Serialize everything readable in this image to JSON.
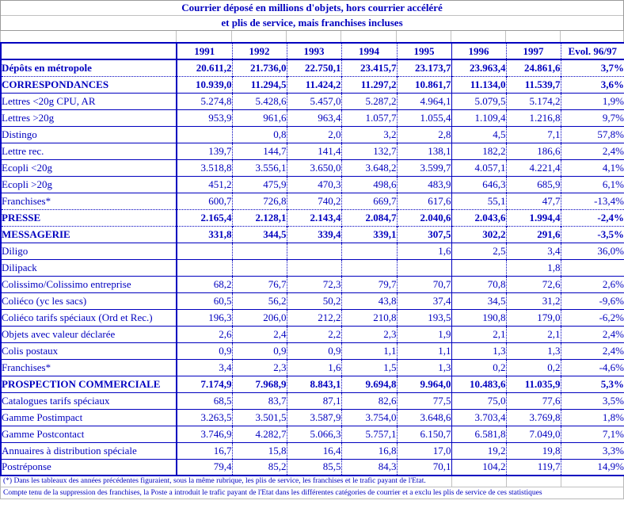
{
  "title": {
    "line1": "Courrier déposé en millions d'objets, hors courrier accéléré",
    "line2": "et plis de service, mais franchises incluses"
  },
  "table": {
    "columns": [
      "1991",
      "1992",
      "1993",
      "1994",
      "1995",
      "1996",
      "1997",
      "Evol. 96/97"
    ],
    "rows": [
      {
        "label": "Dépôts en métropole",
        "bold": true,
        "values": [
          "20.611,2",
          "21.736,0",
          "22.750,1",
          "23.415,7",
          "23.173,7",
          "23.963,4",
          "24.861,6",
          "3,7%"
        ]
      },
      {
        "label": "CORRESPONDANCES",
        "bold": true,
        "dotted_top": true,
        "values": [
          "10.939,0",
          "11.294,5",
          "11.424,2",
          "11.297,2",
          "10.861,7",
          "11.134,0",
          "11.539,7",
          "3,6%"
        ]
      },
      {
        "label": "Lettres <20g CPU, AR",
        "bold": false,
        "values": [
          "5.274,8",
          "5.428,6",
          "5.457,0",
          "5.287,2",
          "4.964,1",
          "5.079,5",
          "5.174,2",
          "1,9%"
        ]
      },
      {
        "label": "Lettres >20g",
        "bold": false,
        "values": [
          "953,9",
          "961,6",
          "963,4",
          "1.057,7",
          "1.055,4",
          "1.109,4",
          "1.216,8",
          "9,7%"
        ]
      },
      {
        "label": "Distingo",
        "bold": false,
        "values": [
          "",
          "0,8",
          "2,0",
          "3,2",
          "2,8",
          "4,5",
          "7,1",
          "57,8%"
        ]
      },
      {
        "label": "Lettre rec.",
        "bold": false,
        "values": [
          "139,7",
          "144,7",
          "141,4",
          "132,7",
          "138,1",
          "182,2",
          "186,6",
          "2,4%"
        ]
      },
      {
        "label": "Ecopli <20g",
        "bold": false,
        "values": [
          "3.518,8",
          "3.556,1",
          "3.650,0",
          "3.648,2",
          "3.599,7",
          "4.057,1",
          "4.221,4",
          "4,1%"
        ]
      },
      {
        "label": "Ecopli >20g",
        "bold": false,
        "values": [
          "451,2",
          "475,9",
          "470,3",
          "498,6",
          "483,9",
          "646,3",
          "685,9",
          "6,1%"
        ]
      },
      {
        "label": "Franchises*",
        "bold": false,
        "values": [
          "600,7",
          "726,8",
          "740,2",
          "669,7",
          "617,6",
          "55,1",
          "47,7",
          "-13,4%"
        ]
      },
      {
        "label": "PRESSE",
        "bold": true,
        "dotted_top": true,
        "values": [
          "2.165,4",
          "2.128,1",
          "2.143,4",
          "2.084,7",
          "2.040,6",
          "2.043,6",
          "1.994,4",
          "-2,4%"
        ]
      },
      {
        "label": "MESSAGERIE",
        "bold": true,
        "dotted_top": true,
        "values": [
          "331,8",
          "344,5",
          "339,4",
          "339,1",
          "307,5",
          "302,2",
          "291,6",
          "-3,5%"
        ]
      },
      {
        "label": "Diligo",
        "bold": false,
        "values": [
          "",
          "",
          "",
          "",
          "1,6",
          "2,5",
          "3,4",
          "36,0%"
        ]
      },
      {
        "label": "Dilipack",
        "bold": false,
        "values": [
          "",
          "",
          "",
          "",
          "",
          "",
          "1,8",
          ""
        ]
      },
      {
        "label": "Colissimo/Colissimo entreprise",
        "bold": false,
        "values": [
          "68,2",
          "76,7",
          "72,3",
          "79,7",
          "70,7",
          "70,8",
          "72,6",
          "2,6%"
        ]
      },
      {
        "label": "Coliéco (yc les sacs)",
        "bold": false,
        "values": [
          "60,5",
          "56,2",
          "50,2",
          "43,8",
          "37,4",
          "34,5",
          "31,2",
          "-9,6%"
        ]
      },
      {
        "label": "Coliéco tarifs spéciaux (Ord et Rec.)",
        "bold": false,
        "values": [
          "196,3",
          "206,0",
          "212,2",
          "210,8",
          "193,5",
          "190,8",
          "179,0",
          "-6,2%"
        ]
      },
      {
        "label": "Objets avec valeur déclarée",
        "bold": false,
        "values": [
          "2,6",
          "2,4",
          "2,2",
          "2,3",
          "1,9",
          "2,1",
          "2,1",
          "2,4%"
        ]
      },
      {
        "label": "Colis postaux",
        "bold": false,
        "values": [
          "0,9",
          "0,9",
          "0,9",
          "1,1",
          "1,1",
          "1,3",
          "1,3",
          "2,4%"
        ]
      },
      {
        "label": "Franchises*",
        "bold": false,
        "values": [
          "3,4",
          "2,3",
          "1,6",
          "1,5",
          "1,3",
          "0,2",
          "0,2",
          "-4,6%"
        ]
      },
      {
        "label": "PROSPECTION COMMERCIALE",
        "bold": true,
        "values": [
          "7.174,9",
          "7.968,9",
          "8.843,1",
          "9.694,8",
          "9.964,0",
          "10.483,6",
          "11.035,9",
          "5,3%"
        ]
      },
      {
        "label": "Catalogues tarifs spéciaux",
        "bold": false,
        "values": [
          "68,5",
          "83,7",
          "87,1",
          "82,6",
          "77,5",
          "75,0",
          "77,6",
          "3,5%"
        ]
      },
      {
        "label": "Gamme Postimpact",
        "bold": false,
        "values": [
          "3.263,5",
          "3.501,5",
          "3.587,9",
          "3.754,0",
          "3.648,6",
          "3.703,4",
          "3.769,8",
          "1,8%"
        ]
      },
      {
        "label": "Gamme Postcontact",
        "bold": false,
        "values": [
          "3.746,9",
          "4.282,7",
          "5.066,3",
          "5.757,1",
          "6.150,7",
          "6.581,8",
          "7.049,0",
          "7,1%"
        ]
      },
      {
        "label": "Annuaires à distribution spéciale",
        "bold": false,
        "values": [
          "16,7",
          "15,8",
          "16,4",
          "16,8",
          "17,0",
          "19,2",
          "19,8",
          "3,3%"
        ]
      },
      {
        "label": "Postréponse",
        "bold": false,
        "values": [
          "79,4",
          "85,2",
          "85,5",
          "84,3",
          "70,1",
          "104,2",
          "119,7",
          "14,9%"
        ]
      }
    ]
  },
  "footnotes": [
    "(*) Dans les tableaux des années précédentes figuraient, sous la même rubrique, les plis de service, les franchises et le trafic payant de l'Etat.",
    "Compte tenu de la suppression des franchises, la Poste a introduit le trafic payant de l'Etat dans les différentes catégories de courrier et a exclu les plis de service de ces statistiques"
  ],
  "colors": {
    "ink_blue": "#0000bf",
    "grid_gray": "#b8b8b8"
  }
}
